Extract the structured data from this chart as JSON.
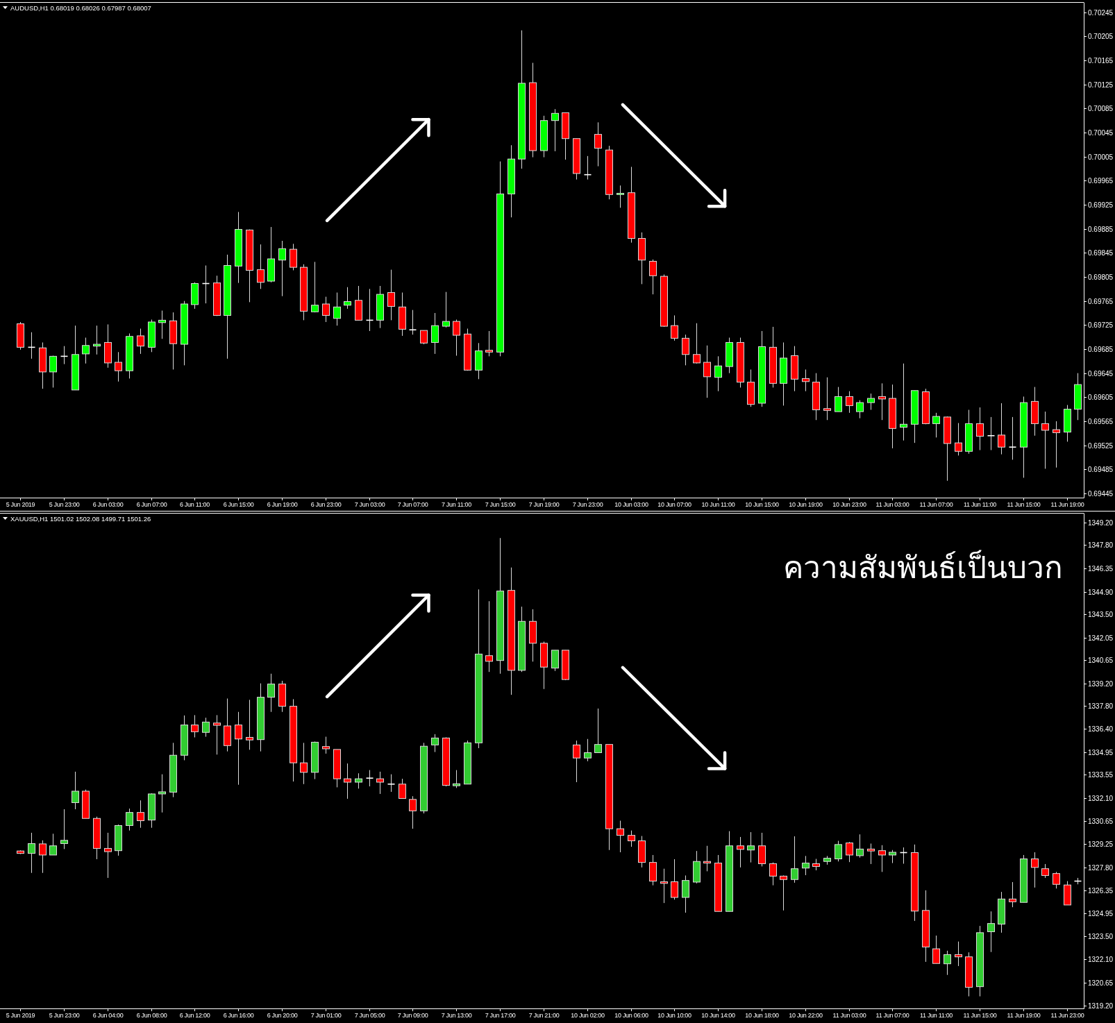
{
  "chart_data": [
    {
      "type": "candlestick",
      "title": "AUDUSD,H1 0.68019 0.68026 0.67987 0.68007",
      "categories": [
        "5 Jun 2019",
        null,
        null,
        null,
        "5 Jun 23:00",
        null,
        null,
        null,
        "6 Jun 03:00",
        null,
        null,
        null,
        "6 Jun 07:00",
        null,
        null,
        null,
        "6 Jun 11:00",
        null,
        null,
        null,
        "6 Jun 15:00",
        null,
        null,
        null,
        "6 Jun 19:00",
        null,
        null,
        null,
        "6 Jun 23:00",
        null,
        null,
        null,
        "7 Jun 03:00",
        null,
        null,
        null,
        "7 Jun 07:00",
        null,
        null,
        null,
        "7 Jun 11:00",
        null,
        null,
        null,
        "7 Jun 15:00",
        null,
        null,
        null,
        "7 Jun 19:00",
        null,
        null,
        null,
        "7 Jun 23:00",
        null,
        null,
        null,
        "10 Jun 03:00",
        null,
        null,
        null,
        "10 Jun 07:00",
        null,
        null,
        null,
        "10 Jun 11:00",
        null,
        null,
        null,
        "10 Jun 15:00",
        null,
        null,
        null,
        "10 Jun 19:00",
        null,
        null,
        null,
        "10 Jun 23:00",
        null,
        null,
        null,
        "11 Jun 03:00",
        null,
        null,
        null,
        "11 Jun 07:00",
        null,
        null,
        null,
        "11 Jun 11:00",
        null,
        null,
        null,
        "11 Jun 15:00",
        null,
        null,
        null,
        "11 Jun 19:00",
        null
      ],
      "ohlc": [
        [
          0.69727,
          0.6973,
          0.69684,
          0.69688
        ],
        [
          0.69688,
          0.69713,
          0.69669,
          0.69688
        ],
        [
          0.69687,
          0.69696,
          0.69619,
          0.69647
        ],
        [
          0.69647,
          0.69674,
          0.69621,
          0.69673
        ],
        [
          0.69673,
          0.6969,
          0.6966,
          0.69673
        ],
        [
          0.69617,
          0.69724,
          0.69617,
          0.69676
        ],
        [
          0.69677,
          0.69704,
          0.69661,
          0.69691
        ],
        [
          0.6969,
          0.69724,
          0.69676,
          0.69693
        ],
        [
          0.69696,
          0.69726,
          0.69654,
          0.69662
        ],
        [
          0.69663,
          0.6968,
          0.69631,
          0.69649
        ],
        [
          0.69649,
          0.69711,
          0.69636,
          0.69706
        ],
        [
          0.69707,
          0.69719,
          0.69677,
          0.6969
        ],
        [
          0.69688,
          0.69734,
          0.6968,
          0.6973
        ],
        [
          0.69729,
          0.69749,
          0.69702,
          0.69733
        ],
        [
          0.69732,
          0.69746,
          0.69651,
          0.69694
        ],
        [
          0.69693,
          0.69765,
          0.69658,
          0.6976
        ],
        [
          0.69759,
          0.69796,
          0.69752,
          0.69794
        ],
        [
          0.69794,
          0.69824,
          0.69761,
          0.69794
        ],
        [
          0.69795,
          0.69807,
          0.6974,
          0.69741
        ],
        [
          0.69741,
          0.69842,
          0.69669,
          0.69824
        ],
        [
          0.69823,
          0.69913,
          0.69795,
          0.69884
        ],
        [
          0.69883,
          0.69884,
          0.69763,
          0.69816
        ],
        [
          0.69817,
          0.69859,
          0.69785,
          0.69796
        ],
        [
          0.69798,
          0.69888,
          0.69796,
          0.69835
        ],
        [
          0.69833,
          0.69865,
          0.69773,
          0.69852
        ],
        [
          0.69851,
          0.6986,
          0.69816,
          0.69821
        ],
        [
          0.69821,
          0.69826,
          0.69733,
          0.69748
        ],
        [
          0.69747,
          0.6983,
          0.69746,
          0.69758
        ],
        [
          0.6976,
          0.69772,
          0.6973,
          0.69741
        ],
        [
          0.69736,
          0.69779,
          0.69724,
          0.69755
        ],
        [
          0.69758,
          0.69788,
          0.69752,
          0.69764
        ],
        [
          0.69766,
          0.6979,
          0.69733,
          0.69733
        ],
        [
          0.69733,
          0.69785,
          0.69715,
          0.69733
        ],
        [
          0.69733,
          0.6979,
          0.6972,
          0.69776
        ],
        [
          0.69779,
          0.69817,
          0.69733,
          0.69756
        ],
        [
          0.69755,
          0.69779,
          0.69707,
          0.69718
        ],
        [
          0.69717,
          0.6975,
          0.69709,
          0.69717
        ],
        [
          0.69716,
          0.69716,
          0.69693,
          0.69695
        ],
        [
          0.69696,
          0.69745,
          0.69677,
          0.69724
        ],
        [
          0.69723,
          0.6978,
          0.69721,
          0.69731
        ],
        [
          0.69731,
          0.69734,
          0.69674,
          0.69708
        ],
        [
          0.6971,
          0.69719,
          0.69649,
          0.6965
        ],
        [
          0.6965,
          0.69695,
          0.69635,
          0.69682
        ],
        [
          0.69683,
          0.69715,
          0.69673,
          0.6968
        ],
        [
          0.6968,
          0.69997,
          0.69673,
          0.69943
        ],
        [
          0.69943,
          0.70024,
          0.69904,
          0.70001
        ],
        [
          0.70001,
          0.70215,
          0.69985,
          0.70127
        ],
        [
          0.70128,
          0.70161,
          0.70004,
          0.70015
        ],
        [
          0.70015,
          0.70073,
          0.70004,
          0.70065
        ],
        [
          0.70065,
          0.70084,
          0.70014,
          0.70077
        ],
        [
          0.70078,
          0.70078,
          0.7,
          0.70035
        ],
        [
          0.70035,
          0.70035,
          0.69967,
          0.69977
        ],
        [
          0.69975,
          0.70006,
          0.69967,
          0.69975
        ],
        [
          0.70042,
          0.70062,
          0.69989,
          0.70019
        ],
        [
          0.70016,
          0.70023,
          0.69934,
          0.69942
        ],
        [
          0.69942,
          0.69957,
          0.6992,
          0.69944
        ],
        [
          0.69945,
          0.69988,
          0.69862,
          0.69869
        ],
        [
          0.69869,
          0.69879,
          0.69793,
          0.69833
        ],
        [
          0.69831,
          0.69834,
          0.69776,
          0.69807
        ],
        [
          0.69806,
          0.69809,
          0.69722,
          0.69723
        ],
        [
          0.69724,
          0.69741,
          0.69699,
          0.69703
        ],
        [
          0.69703,
          0.69709,
          0.69658,
          0.69676
        ],
        [
          0.69676,
          0.69728,
          0.69661,
          0.69662
        ],
        [
          0.69663,
          0.69691,
          0.69604,
          0.69639
        ],
        [
          0.69638,
          0.69673,
          0.69615,
          0.69657
        ],
        [
          0.69656,
          0.69704,
          0.69645,
          0.69696
        ],
        [
          0.69696,
          0.69704,
          0.69621,
          0.6963
        ],
        [
          0.6963,
          0.69651,
          0.69589,
          0.69593
        ],
        [
          0.69595,
          0.69715,
          0.69589,
          0.69689
        ],
        [
          0.69688,
          0.69722,
          0.69621,
          0.69628
        ],
        [
          0.69628,
          0.69696,
          0.69591,
          0.6967
        ],
        [
          0.69674,
          0.6969,
          0.69615,
          0.69635
        ],
        [
          0.69636,
          0.69651,
          0.69615,
          0.69631
        ],
        [
          0.6963,
          0.69645,
          0.69567,
          0.69584
        ],
        [
          0.69586,
          0.69638,
          0.69567,
          0.69583
        ],
        [
          0.69581,
          0.69622,
          0.69581,
          0.69606
        ],
        [
          0.69606,
          0.69615,
          0.69579,
          0.69591
        ],
        [
          0.69581,
          0.696,
          0.6957,
          0.69596
        ],
        [
          0.69596,
          0.69611,
          0.69584,
          0.69603
        ],
        [
          0.69606,
          0.69628,
          0.69567,
          0.69602
        ],
        [
          0.69603,
          0.69626,
          0.6952,
          0.69553
        ],
        [
          0.69555,
          0.69661,
          0.69533,
          0.6956
        ],
        [
          0.6956,
          0.69616,
          0.69529,
          0.69616
        ],
        [
          0.69614,
          0.69619,
          0.6956,
          0.69561
        ],
        [
          0.69561,
          0.69579,
          0.69538,
          0.69573
        ],
        [
          0.69572,
          0.69573,
          0.69466,
          0.69528
        ],
        [
          0.69529,
          0.69562,
          0.69508,
          0.69515
        ],
        [
          0.69515,
          0.69584,
          0.69511,
          0.69561
        ],
        [
          0.69561,
          0.69588,
          0.69517,
          0.6954
        ],
        [
          0.69541,
          0.69572,
          0.69517,
          0.69541
        ],
        [
          0.69542,
          0.69595,
          0.6951,
          0.69522
        ],
        [
          0.69522,
          0.69572,
          0.69501,
          0.69522
        ],
        [
          0.69522,
          0.69606,
          0.69471,
          0.69596
        ],
        [
          0.69598,
          0.69622,
          0.69541,
          0.69561
        ],
        [
          0.69561,
          0.69581,
          0.69486,
          0.6955
        ],
        [
          0.69551,
          0.69565,
          0.69488,
          0.69546
        ],
        [
          0.69547,
          0.69592,
          0.69531,
          0.69585
        ],
        [
          0.69585,
          0.69645,
          0.69567,
          0.69626
        ]
      ],
      "colors": [
        "#ff0000",
        "#ffffff",
        "#ff0000",
        "#00ff00",
        "#ffffff",
        "#00ff00",
        "#00ff00",
        "#00ff00",
        "#ff0000",
        "#ff0000",
        "#00ff00",
        "#ff0000",
        "#00ff00",
        "#00ff00",
        "#ff0000",
        "#00ff00",
        "#00ff00",
        "#ffffff",
        "#ff0000",
        "#00ff00",
        "#00ff00",
        "#ff0000",
        "#ff0000",
        "#00ff00",
        "#00ff00",
        "#ff0000",
        "#ff0000",
        "#00ff00",
        "#ff0000",
        "#00ff00",
        "#00ff00",
        "#ff0000",
        "#ffffff",
        "#00ff00",
        "#ff0000",
        "#ff0000",
        "#ffffff",
        "#ff0000",
        "#00ff00",
        "#00ff00",
        "#ff0000",
        "#ff0000",
        "#00ff00",
        "#ff0000",
        "#00ff00",
        "#00ff00",
        "#00ff00",
        "#ff0000",
        "#00ff00",
        "#00ff00",
        "#ff0000",
        "#ff0000",
        "#ffffff",
        "#ff0000",
        "#ff0000",
        "#00ff00",
        "#ff0000",
        "#ff0000",
        "#ff0000",
        "#ff0000",
        "#ff0000",
        "#ff0000",
        "#ff0000",
        "#ff0000",
        "#00ff00",
        "#00ff00",
        "#ff0000",
        "#ff0000",
        "#00ff00",
        "#ff0000",
        "#00ff00",
        "#ff0000",
        "#ff0000",
        "#ff0000",
        "#ff0000",
        "#00ff00",
        "#ff0000",
        "#00ff00",
        "#00ff00",
        "#ff0000",
        "#ff0000",
        "#00ff00",
        "#00ff00",
        "#ff0000",
        "#00ff00",
        "#ff0000",
        "#ff0000",
        "#00ff00",
        "#ff0000",
        "#ffffff",
        "#ff0000",
        "#ffffff",
        "#00ff00",
        "#ff0000",
        "#ff0000",
        "#ff0000",
        "#00ff00",
        "#00ff00"
      ],
      "ylim": [
        0.69438,
        0.70262
      ],
      "yticks": [
        0.70245,
        0.70205,
        0.70165,
        0.70125,
        0.70085,
        0.70045,
        0.70005,
        0.69965,
        0.69925,
        0.69885,
        0.69845,
        0.69805,
        0.69765,
        0.69725,
        0.69685,
        0.69645,
        0.69605,
        0.69565,
        0.69525,
        0.69485,
        0.69445
      ]
    },
    {
      "type": "candlestick",
      "title": "XAUUSD,H1 1501.02 1502.08 1499.71 1501.26",
      "categories": [
        "5 Jun 2019",
        null,
        null,
        null,
        "5 Jun 23:00",
        null,
        null,
        null,
        "6 Jun 04:00",
        null,
        null,
        null,
        "6 Jun 08:00",
        null,
        null,
        null,
        "6 Jun 12:00",
        null,
        null,
        null,
        "6 Jun 16:00",
        null,
        null,
        null,
        "6 Jun 20:00",
        null,
        null,
        null,
        "7 Jun 01:00",
        null,
        null,
        null,
        "7 Jun 05:00",
        null,
        null,
        null,
        "7 Jun 09:00",
        null,
        null,
        null,
        "7 Jun 13:00",
        null,
        null,
        null,
        "7 Jun 17:00",
        null,
        null,
        null,
        "7 Jun 21:00",
        null,
        null,
        null,
        "10 Jun 02:00",
        null,
        null,
        null,
        "10 Jun 06:00",
        null,
        null,
        null,
        "10 Jun 10:00",
        null,
        null,
        null,
        "10 Jun 14:00",
        null,
        null,
        null,
        "10 Jun 18:00",
        null,
        null,
        null,
        "10 Jun 22:00",
        null,
        null,
        null,
        "11 Jun 03:00",
        null,
        null,
        null,
        "11 Jun 07:00",
        null,
        null,
        null,
        "11 Jun 11:00",
        null,
        null,
        null,
        "11 Jun 15:00",
        null,
        null,
        null,
        "11 Jun 19:00",
        null,
        null,
        null,
        "11 Jun 23:00",
        null
      ],
      "ohlc": [
        [
          1328.81,
          1328.85,
          1328.62,
          1328.66
        ],
        [
          1328.66,
          1329.94,
          1327.45,
          1329.27
        ],
        [
          1329.25,
          1329.47,
          1327.45,
          1328.56
        ],
        [
          1328.56,
          1329.88,
          1328.56,
          1329.13
        ],
        [
          1329.27,
          1331.4,
          1328.93,
          1329.47
        ],
        [
          1331.81,
          1333.73,
          1331.4,
          1332.52
        ],
        [
          1332.52,
          1332.62,
          1330.83,
          1330.83
        ],
        [
          1330.83,
          1330.94,
          1328.3,
          1328.97
        ],
        [
          1328.97,
          1329.94,
          1327.14,
          1328.77
        ],
        [
          1328.83,
          1330.45,
          1328.52,
          1330.39
        ],
        [
          1330.39,
          1331.44,
          1330.08,
          1331.2
        ],
        [
          1331.2,
          1331.95,
          1330.25,
          1330.69
        ],
        [
          1330.73,
          1332.39,
          1330.25,
          1332.35
        ],
        [
          1332.35,
          1333.57,
          1331.2,
          1332.48
        ],
        [
          1332.46,
          1335.52,
          1332.15,
          1334.75
        ],
        [
          1334.75,
          1337.22,
          1334.44,
          1336.63
        ],
        [
          1336.63,
          1337.24,
          1335.86,
          1336.21
        ],
        [
          1336.17,
          1337.08,
          1335.9,
          1336.81
        ],
        [
          1336.75,
          1337.24,
          1334.79,
          1336.61
        ],
        [
          1336.57,
          1338.27,
          1334.99,
          1335.35
        ],
        [
          1336.63,
          1337.44,
          1332.92,
          1335.76
        ],
        [
          1335.86,
          1338.19,
          1335.09,
          1335.7
        ],
        [
          1335.72,
          1339.21,
          1334.99,
          1338.35
        ],
        [
          1338.35,
          1339.81,
          1337.44,
          1339.17
        ],
        [
          1339.17,
          1339.37,
          1337.44,
          1337.79
        ],
        [
          1337.79,
          1338.23,
          1333.12,
          1334.28
        ],
        [
          1334.28,
          1335.52,
          1332.96,
          1333.69
        ],
        [
          1333.69,
          1335.6,
          1333.27,
          1335.56
        ],
        [
          1335.29,
          1335.9,
          1334.85,
          1335.15
        ],
        [
          1335.11,
          1335.11,
          1332.76,
          1333.29
        ],
        [
          1333.29,
          1334.24,
          1332.05,
          1333.08
        ],
        [
          1333.08,
          1333.63,
          1332.68,
          1333.29
        ],
        [
          1333.33,
          1333.83,
          1332.82,
          1333.33
        ],
        [
          1333.29,
          1333.73,
          1332.35,
          1333.08
        ],
        [
          1332.96,
          1333.57,
          1332.48,
          1332.96
        ],
        [
          1332.96,
          1333.29,
          1332.07,
          1332.07
        ],
        [
          1332.01,
          1332.21,
          1330.19,
          1331.3
        ],
        [
          1331.3,
          1335.52,
          1331.14,
          1335.31
        ],
        [
          1335.39,
          1336.06,
          1334.95,
          1335.82
        ],
        [
          1335.82,
          1335.86,
          1332.82,
          1332.88
        ],
        [
          1332.86,
          1333.83,
          1332.72,
          1332.98
        ],
        [
          1332.96,
          1335.66,
          1332.96,
          1335.52
        ],
        [
          1335.52,
          1345.04,
          1335.19,
          1341.03
        ],
        [
          1340.93,
          1344.31,
          1339.92,
          1340.58
        ],
        [
          1340.63,
          1348.23,
          1339.81,
          1344.94
        ],
        [
          1344.98,
          1346.4,
          1338.5,
          1340.02
        ],
        [
          1340.02,
          1343.97,
          1339.92,
          1343.06
        ],
        [
          1343.06,
          1343.81,
          1340.56,
          1341.7
        ],
        [
          1341.7,
          1341.8,
          1338.86,
          1340.22
        ],
        [
          1340.16,
          1341.27,
          1339.98,
          1341.27
        ],
        [
          1341.27,
          1341.27,
          1339.41,
          1339.45
        ],
        [
          1335.39,
          1335.66,
          1333.08,
          1334.58
        ],
        [
          1334.58,
          1335.76,
          1334.38,
          1334.91
        ],
        [
          1334.91,
          1337.65,
          1334.91,
          1335.42
        ],
        [
          1335.42,
          1335.42,
          1328.87,
          1330.19
        ],
        [
          1330.19,
          1330.69,
          1328.73,
          1329.78
        ],
        [
          1329.78,
          1330.08,
          1329.07,
          1329.44
        ],
        [
          1329.44,
          1329.74,
          1327.79,
          1328.1
        ],
        [
          1328.1,
          1328.56,
          1326.68,
          1326.94
        ],
        [
          1326.9,
          1327.71,
          1325.58,
          1326.8
        ],
        [
          1326.9,
          1328.3,
          1325.79,
          1325.93
        ],
        [
          1325.93,
          1327.29,
          1324.98,
          1326.98
        ],
        [
          1326.88,
          1328.81,
          1326.8,
          1328.16
        ],
        [
          1328.16,
          1329.13,
          1327.55,
          1328.06
        ],
        [
          1328.06,
          1328.56,
          1325.06,
          1325.06
        ],
        [
          1325.06,
          1330.04,
          1325.06,
          1329.13
        ],
        [
          1329.13,
          1329.68,
          1327.79,
          1328.91
        ],
        [
          1328.87,
          1329.98,
          1328.1,
          1329.13
        ],
        [
          1329.13,
          1329.94,
          1327.85,
          1328.02
        ],
        [
          1328.02,
          1328.1,
          1326.68,
          1327.25
        ],
        [
          1327.25,
          1327.29,
          1325.12,
          1327.04
        ],
        [
          1327.04,
          1329.72,
          1326.84,
          1327.71
        ],
        [
          1327.75,
          1328.5,
          1327.31,
          1328.06
        ],
        [
          1328.02,
          1328.32,
          1327.61,
          1327.85
        ],
        [
          1328.16,
          1328.5,
          1327.96,
          1328.36
        ],
        [
          1328.32,
          1329.44,
          1328.16,
          1329.21
        ],
        [
          1329.31,
          1329.37,
          1328.12,
          1328.56
        ],
        [
          1328.52,
          1329.84,
          1328.4,
          1328.93
        ],
        [
          1328.93,
          1329.27,
          1328.0,
          1328.81
        ],
        [
          1328.83,
          1329.17,
          1327.51,
          1328.56
        ],
        [
          1328.56,
          1328.87,
          1328.06,
          1328.73
        ],
        [
          1328.71,
          1329.03,
          1328.02,
          1328.71
        ],
        [
          1328.71,
          1329.21,
          1324.47,
          1325.08
        ],
        [
          1325.12,
          1326.37,
          1321.93,
          1322.85
        ],
        [
          1322.74,
          1323.56,
          1321.83,
          1321.83
        ],
        [
          1321.81,
          1322.62,
          1321.12,
          1322.38
        ],
        [
          1322.38,
          1323.19,
          1321.67,
          1322.24
        ],
        [
          1322.24,
          1322.52,
          1319.79,
          1320.35
        ],
        [
          1320.39,
          1324.16,
          1319.79,
          1323.74
        ],
        [
          1323.8,
          1325.06,
          1322.54,
          1324.31
        ],
        [
          1324.27,
          1326.27,
          1323.74,
          1325.83
        ],
        [
          1325.83,
          1326.88,
          1325.32,
          1325.66
        ],
        [
          1325.62,
          1328.56,
          1325.62,
          1328.32
        ],
        [
          1328.32,
          1328.73,
          1326.54,
          1327.79
        ],
        [
          1327.71,
          1328.0,
          1327.14,
          1327.29
        ],
        [
          1327.41,
          1327.51,
          1326.48,
          1326.74
        ],
        [
          1326.7,
          1326.94,
          1325.46,
          1325.46
        ],
        [
          1326.94,
          1327.14,
          1326.74,
          1326.94
        ]
      ],
      "colors": [
        "#ff0000",
        "#32cd32",
        "#ff0000",
        "#32cd32",
        "#32cd32",
        "#32cd32",
        "#ff0000",
        "#ff0000",
        "#ff0000",
        "#32cd32",
        "#32cd32",
        "#ff0000",
        "#32cd32",
        "#32cd32",
        "#32cd32",
        "#32cd32",
        "#ff0000",
        "#32cd32",
        "#ff0000",
        "#ff0000",
        "#ff0000",
        "#ff0000",
        "#32cd32",
        "#32cd32",
        "#ff0000",
        "#ff0000",
        "#ff0000",
        "#32cd32",
        "#ff0000",
        "#ff0000",
        "#ff0000",
        "#32cd32",
        "#ffffff",
        "#ff0000",
        "#ffffff",
        "#ff0000",
        "#ff0000",
        "#32cd32",
        "#32cd32",
        "#ff0000",
        "#32cd32",
        "#32cd32",
        "#32cd32",
        "#ff0000",
        "#32cd32",
        "#ff0000",
        "#32cd32",
        "#ff0000",
        "#ff0000",
        "#32cd32",
        "#ff0000",
        "#ff0000",
        "#32cd32",
        "#32cd32",
        "#ff0000",
        "#ff0000",
        "#ff0000",
        "#ff0000",
        "#ff0000",
        "#ff0000",
        "#ff0000",
        "#32cd32",
        "#32cd32",
        "#ff0000",
        "#ff0000",
        "#32cd32",
        "#ff0000",
        "#32cd32",
        "#ff0000",
        "#ff0000",
        "#ff0000",
        "#32cd32",
        "#32cd32",
        "#ff0000",
        "#32cd32",
        "#32cd32",
        "#ff0000",
        "#32cd32",
        "#ff0000",
        "#ff0000",
        "#32cd32",
        "#ffffff",
        "#ff0000",
        "#ff0000",
        "#ff0000",
        "#32cd32",
        "#ff0000",
        "#ff0000",
        "#32cd32",
        "#32cd32",
        "#32cd32",
        "#ff0000",
        "#32cd32",
        "#ff0000",
        "#ff0000",
        "#ff0000",
        "#ff0000",
        "#ffffff"
      ],
      "ylim": [
        1319.04,
        1349.79
      ],
      "yticks": [
        {
          "value": 1349.2,
          "label": "1349.20"
        },
        {
          "value": 1347.8,
          "label": "1347.80"
        },
        {
          "value": 1346.35,
          "label": "1346.35"
        },
        {
          "value": 1344.9,
          "label": "1344.90"
        },
        {
          "value": 1343.5,
          "label": "1343.50"
        },
        {
          "value": 1342.05,
          "label": "1342.05"
        },
        {
          "value": 1340.65,
          "label": "1340.65"
        },
        {
          "value": 1339.2,
          "label": "1339.20"
        },
        {
          "value": 1337.8,
          "label": "1337.80"
        },
        {
          "value": 1336.4,
          "label": "1336.40"
        },
        {
          "value": 1334.95,
          "label": "1334.95"
        },
        {
          "value": 1333.55,
          "label": "1333.55"
        },
        {
          "value": 1332.1,
          "label": "1332.10"
        },
        {
          "value": 1330.65,
          "label": "1330.65"
        },
        {
          "value": 1329.25,
          "label": "1329.25"
        },
        {
          "value": 1327.8,
          "label": "1327.80"
        },
        {
          "value": 1326.35,
          "label": "1326.35"
        },
        {
          "value": 1324.95,
          "label": "1324.95"
        },
        {
          "value": 1323.5,
          "label": "1323.50"
        },
        {
          "value": 1322.1,
          "label": "1322.10"
        },
        {
          "value": 1320.65,
          "label": "1320.65"
        },
        {
          "value": 1319.2,
          "label": "1319.20"
        }
      ],
      "annotations": [
        "ความสัมพันธ์เป็นบวก"
      ]
    }
  ]
}
